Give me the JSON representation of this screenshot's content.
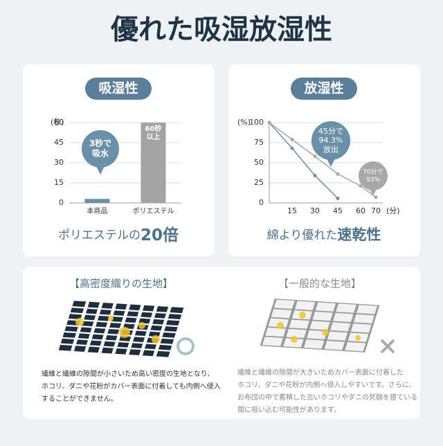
{
  "header": {
    "title": "優れた吸湿放湿性"
  },
  "chart_data": [
    {
      "type": "bar",
      "badge": "吸湿性",
      "ylabel": "(秒)",
      "categories": [
        "本商品",
        "ポリエステル"
      ],
      "values": [
        3,
        60
      ],
      "colors": [
        "#6a8fa8",
        "#a3a3a3"
      ],
      "ylim": [
        0,
        60
      ],
      "yticks": [
        0,
        15,
        30,
        45,
        60
      ],
      "grid": true,
      "annotations": [
        [
          "3秒で",
          "吸水"
        ],
        [
          "60秒",
          "以上"
        ]
      ],
      "caption": [
        "ポリエステルの",
        "20倍"
      ]
    },
    {
      "type": "line",
      "badge": "放湿性",
      "ylabel": "(%)",
      "xlabel": "(分)",
      "x": [
        0,
        15,
        30,
        45,
        60,
        70
      ],
      "series": [
        {
          "color": "#6a8fa8",
          "values": [
            100,
            68,
            34,
            5.7,
            null,
            null
          ]
        },
        {
          "color": "#a8a8a8",
          "values": [
            100,
            79,
            58,
            36,
            21,
            7
          ]
        }
      ],
      "xlim": [
        0,
        70
      ],
      "ylim": [
        0,
        100
      ],
      "xticks": [
        15,
        30,
        45,
        60,
        70
      ],
      "yticks": [
        0,
        25,
        50,
        75,
        100
      ],
      "grid": true,
      "annotations": [
        [
          "45分で",
          "94.3%",
          "放出"
        ],
        [
          "70分で",
          "93%"
        ]
      ],
      "caption": [
        "綿より優れた",
        "速乾性"
      ]
    }
  ],
  "fabrics": [
    {
      "title": "【高密度織りの生地】",
      "text": [
        "繊維と繊維の隙間が小さいため高い密度の生地となり、",
        "ホコリ、ダニや花粉がカバー表面に付着しても内側へ侵入",
        "することができません。"
      ]
    },
    {
      "title": "【一般的な生地】",
      "text": [
        "繊維と繊維の隙間が大きいためカバー表面に付着した",
        "ホコリ、ダニや花粉が内側へ侵入しやすいです。さらに、",
        "お布団の中で蓄積した古いホコリやダニの死骸を寝ている",
        "間に吸い込む可能性があります。"
      ]
    }
  ]
}
